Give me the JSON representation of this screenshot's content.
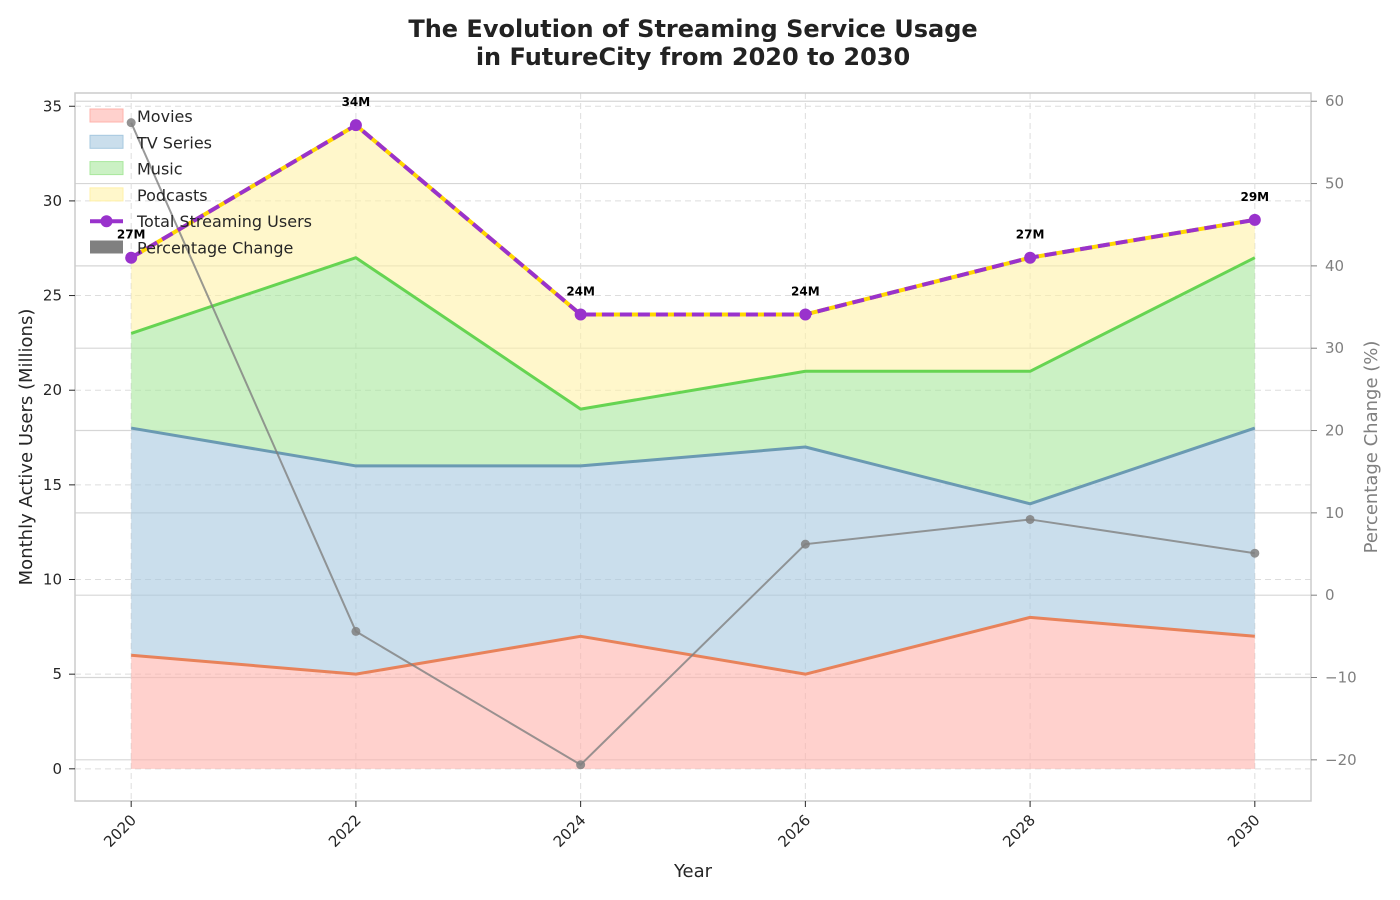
{
  "chart_data": {
    "type": "area",
    "title": [
      "The Evolution of Streaming Service Usage",
      "in FutureCity from 2020 to 2030"
    ],
    "xlabel": "Year",
    "ylabel": "Monthly Active Users (Millions)",
    "y2label": "Percentage Change (%)",
    "x": [
      2020,
      2022,
      2024,
      2026,
      2028,
      2030
    ],
    "x_ticks": [
      "2020",
      "2022",
      "2024",
      "2026",
      "2028",
      "2030"
    ],
    "ylim": [
      -1.7,
      35.7
    ],
    "y_ticks": [
      0,
      5,
      10,
      15,
      20,
      25,
      30,
      35
    ],
    "y2lim": [
      -25,
      61
    ],
    "y2_ticks": [
      -20,
      -10,
      0,
      10,
      20,
      30,
      40,
      50,
      60
    ],
    "y2_tick_labels": [
      "−20",
      "−10",
      "0",
      "10",
      "20",
      "30",
      "40",
      "50",
      "60"
    ],
    "stacked": true,
    "series": [
      {
        "name": "Movies",
        "values": [
          6,
          5,
          7,
          5,
          8,
          7
        ],
        "color": "#e8825a",
        "fill": "#ffb3ac"
      },
      {
        "name": "TV Series",
        "values": [
          12,
          11,
          9,
          12,
          6,
          11
        ],
        "color": "#6a9ab2",
        "fill": "#a6c8df"
      },
      {
        "name": "Music",
        "values": [
          5,
          11,
          3,
          4,
          7,
          9
        ],
        "color": "#66d452",
        "fill": "#a8e89c"
      },
      {
        "name": "Podcasts",
        "values": [
          4,
          7,
          5,
          3,
          6,
          2
        ],
        "color": "#ffd700",
        "fill": "#fff1a8"
      }
    ],
    "total_series": {
      "name": "Total Streaming Users",
      "values": [
        27,
        34,
        24,
        24,
        27,
        29
      ],
      "labels": [
        "27M",
        "34M",
        "24M",
        "24M",
        "27M",
        "29M"
      ],
      "color": "#9932cc",
      "dash_color": "#ffd700"
    },
    "pct_change_series": {
      "name": "Percentage Change",
      "values": [
        57.4,
        -4.4,
        -20.6,
        6.2,
        9.2,
        5.1
      ],
      "color": "#808080"
    },
    "legend_position": "upper-left",
    "grid": true
  }
}
